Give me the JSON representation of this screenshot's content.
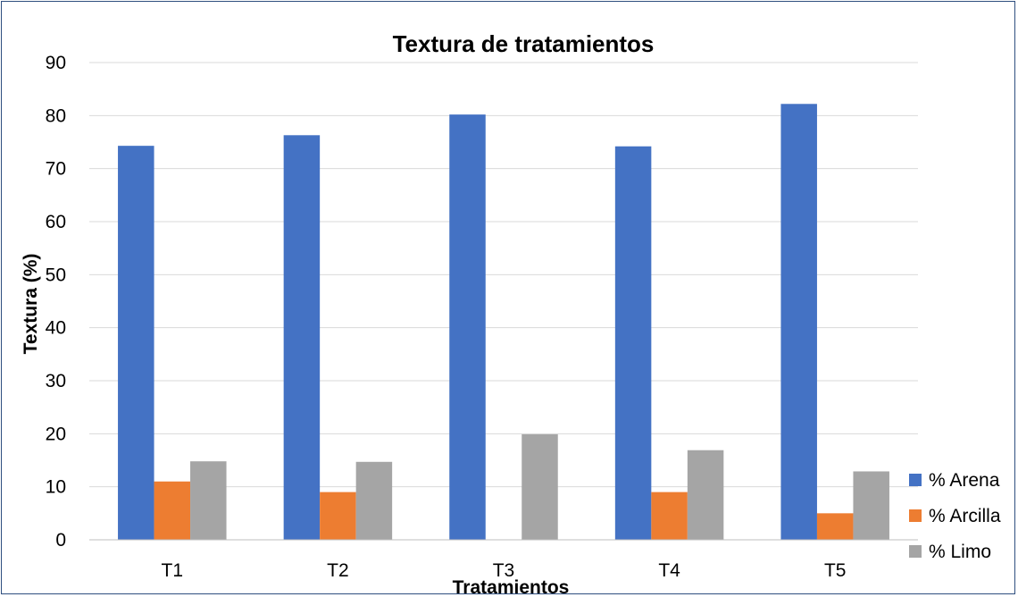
{
  "chart_data": {
    "type": "bar",
    "title": "Textura de tratamientos",
    "xlabel": "Tratamientos",
    "ylabel": "Textura (%)",
    "categories": [
      "T1",
      "T2",
      "T3",
      "T4",
      "T5"
    ],
    "series": [
      {
        "name": "% Arena",
        "color": "#4472c4",
        "values": [
          74.3,
          76.3,
          80.2,
          74.2,
          82.2
        ]
      },
      {
        "name": "% Arcilla",
        "color": "#ed7d31",
        "values": [
          11,
          9,
          0,
          9,
          5
        ]
      },
      {
        "name": "% Limo",
        "color": "#a5a5a5",
        "values": [
          14.8,
          14.7,
          19.9,
          16.9,
          12.9
        ]
      }
    ],
    "ylim": [
      0,
      90
    ],
    "yticks": [
      0,
      10,
      20,
      30,
      40,
      50,
      60,
      70,
      80,
      90
    ],
    "grid": true,
    "legend_position": "right"
  }
}
